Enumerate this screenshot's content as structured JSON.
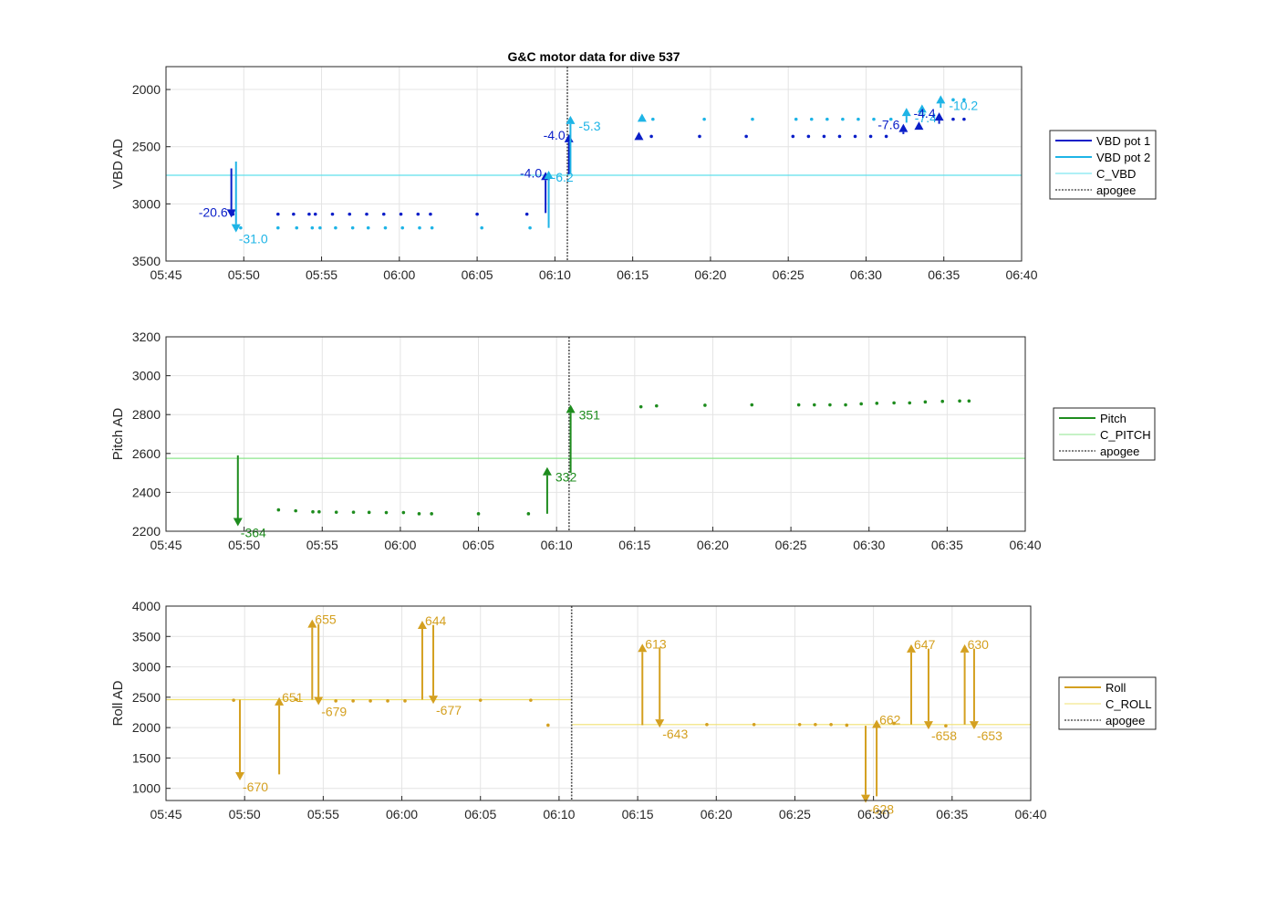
{
  "title": "G&C motor data for dive 537",
  "colors": {
    "vbd1": "#0a1ec8",
    "vbd2": "#1eb4e6",
    "c_vbd": "#5fe0ec",
    "pitch": "#1e8c1e",
    "c_pitch": "#8ce68c",
    "roll": "#d4a020",
    "c_roll": "#f0e070",
    "apogee": "#555555",
    "grid": "#e4e4e4",
    "axis": "#262626"
  },
  "chart_data": [
    {
      "type": "line",
      "id": "vbd",
      "title": "G&C motor data for dive 537",
      "ylabel": "VBD AD",
      "xlabel": "",
      "ylim": [
        1800,
        3500
      ],
      "y_reversed": true,
      "yticks": [
        2000,
        2500,
        3000,
        3500
      ],
      "xlim": [
        "05:45",
        "06:40"
      ],
      "xticks": [
        "05:45",
        "05:50",
        "05:55",
        "06:00",
        "06:05",
        "06:10",
        "06:15",
        "06:20",
        "06:25",
        "06:30",
        "06:35",
        "06:40"
      ],
      "grid": true,
      "legend_location": "right",
      "legend": [
        "VBD pot 1",
        "VBD pot 2",
        "C_VBD",
        "apogee"
      ],
      "constants": [
        {
          "name": "C_VBD",
          "value": 2750
        }
      ],
      "apogee": "06:10.8",
      "series": [
        {
          "name": "VBD pot 1",
          "color_key": "vbd1",
          "points": [
            [
              "05:49.3",
              3090
            ],
            [
              "05:52.2",
              3090
            ],
            [
              "05:53.2",
              3090
            ],
            [
              "05:54.2",
              3090
            ],
            [
              "05:54.6",
              3090
            ],
            [
              "05:55.7",
              3090
            ],
            [
              "05:56.8",
              3090
            ],
            [
              "05:57.9",
              3090
            ],
            [
              "05:59.0",
              3090
            ],
            [
              "06:00.1",
              3090
            ],
            [
              "06:01.2",
              3090
            ],
            [
              "06:02.0",
              3090
            ],
            [
              "06:05.0",
              3090
            ],
            [
              "06:08.2",
              3090
            ],
            [
              "06:16.2",
              2410
            ],
            [
              "06:19.3",
              2410
            ],
            [
              "06:22.3",
              2410
            ],
            [
              "06:25.3",
              2410
            ],
            [
              "06:26.3",
              2410
            ],
            [
              "06:27.3",
              2410
            ],
            [
              "06:28.3",
              2410
            ],
            [
              "06:29.3",
              2410
            ],
            [
              "06:30.3",
              2410
            ],
            [
              "06:31.3",
              2410
            ],
            [
              "06:35.6",
              2260
            ],
            [
              "06:36.3",
              2260
            ]
          ]
        },
        {
          "name": "VBD pot 2",
          "color_key": "vbd2",
          "points": [
            [
              "05:49.8",
              3210
            ],
            [
              "05:52.2",
              3210
            ],
            [
              "05:53.4",
              3210
            ],
            [
              "05:54.4",
              3210
            ],
            [
              "05:54.9",
              3210
            ],
            [
              "05:55.9",
              3210
            ],
            [
              "05:57.0",
              3210
            ],
            [
              "05:58.0",
              3210
            ],
            [
              "05:59.1",
              3210
            ],
            [
              "06:00.2",
              3210
            ],
            [
              "06:01.3",
              3210
            ],
            [
              "06:02.1",
              3210
            ],
            [
              "06:05.3",
              3210
            ],
            [
              "06:08.4",
              3210
            ],
            [
              "06:16.3",
              2260
            ],
            [
              "06:19.6",
              2260
            ],
            [
              "06:22.7",
              2260
            ],
            [
              "06:25.5",
              2260
            ],
            [
              "06:26.5",
              2260
            ],
            [
              "06:27.5",
              2260
            ],
            [
              "06:28.5",
              2260
            ],
            [
              "06:29.5",
              2260
            ],
            [
              "06:30.5",
              2260
            ],
            [
              "06:31.6",
              2260
            ],
            [
              "06:35.6",
              2090
            ],
            [
              "06:36.3",
              2090
            ]
          ]
        }
      ],
      "markers": [
        {
          "t": "06:15.4",
          "y": 2410,
          "color_key": "vbd1"
        },
        {
          "t": "06:15.6",
          "y": 2250,
          "color_key": "vbd2"
        },
        {
          "t": "06:33.6",
          "y": 2170,
          "color_key": "vbd2"
        },
        {
          "t": "06:33.4",
          "y": 2320,
          "color_key": "vbd1"
        }
      ],
      "arrows": [
        {
          "t": "05:49.2",
          "y0": 2690,
          "y1": 3120,
          "color_key": "vbd1",
          "label": "-20.6",
          "label_side": "left"
        },
        {
          "t": "05:49.5",
          "y0": 2630,
          "y1": 3250,
          "color_key": "vbd2",
          "label": "-31.0",
          "label_side": "right-below"
        },
        {
          "t": "06:09.4",
          "y0": 3080,
          "y1": 2720,
          "color_key": "vbd1",
          "label": "-4.0",
          "label_side": "left"
        },
        {
          "t": "06:09.6",
          "y0": 3210,
          "y1": 2710,
          "color_key": "vbd2",
          "label": "-6.2",
          "label_side": "right-below"
        },
        {
          "t": "06:10.9",
          "y0": 2740,
          "y1": 2390,
          "color_key": "vbd1",
          "label": "-4.0",
          "label_side": "left"
        },
        {
          "t": "06:11.0",
          "y0": 2740,
          "y1": 2230,
          "color_key": "vbd2",
          "label": "-5.3",
          "label_side": "right"
        },
        {
          "t": "06:32.4",
          "y0": 2390,
          "y1": 2300,
          "color_key": "vbd1",
          "label": "-7.6",
          "label_side": "left"
        },
        {
          "t": "06:32.6",
          "y0": 2290,
          "y1": 2160,
          "color_key": "vbd2",
          "label": "-7.4",
          "label_side": "right"
        },
        {
          "t": "06:34.7",
          "y0": 2300,
          "y1": 2200,
          "color_key": "vbd1",
          "label": "-4.4",
          "label_side": "left"
        },
        {
          "t": "06:34.8",
          "y0": 2160,
          "y1": 2050,
          "color_key": "vbd2",
          "label": "-10.2",
          "label_side": "right"
        }
      ]
    },
    {
      "type": "line",
      "id": "pitch",
      "ylabel": "Pitch AD",
      "xlabel": "",
      "ylim": [
        2200,
        3200
      ],
      "y_reversed": false,
      "yticks": [
        2200,
        2400,
        2600,
        2800,
        3000,
        3200
      ],
      "xlim": [
        "05:45",
        "06:40"
      ],
      "xticks": [
        "05:45",
        "05:50",
        "05:55",
        "06:00",
        "06:05",
        "06:10",
        "06:15",
        "06:20",
        "06:25",
        "06:30",
        "06:35",
        "06:40"
      ],
      "grid": true,
      "legend_location": "right",
      "legend": [
        "Pitch",
        "C_PITCH",
        "apogee"
      ],
      "constants": [
        {
          "name": "C_PITCH",
          "value": 2575
        }
      ],
      "apogee": "06:10.8",
      "series": [
        {
          "name": "Pitch",
          "color_key": "pitch",
          "points": [
            [
              "05:52.2",
              2310
            ],
            [
              "05:53.3",
              2305
            ],
            [
              "05:54.4",
              2300
            ],
            [
              "05:54.8",
              2300
            ],
            [
              "05:55.9",
              2298
            ],
            [
              "05:57.0",
              2298
            ],
            [
              "05:58.0",
              2297
            ],
            [
              "05:59.1",
              2296
            ],
            [
              "06:00.2",
              2296
            ],
            [
              "06:01.2",
              2290
            ],
            [
              "06:02.0",
              2290
            ],
            [
              "06:05.0",
              2290
            ],
            [
              "06:08.2",
              2290
            ],
            [
              "06:15.4",
              2840
            ],
            [
              "06:16.4",
              2845
            ],
            [
              "06:19.5",
              2848
            ],
            [
              "06:22.5",
              2850
            ],
            [
              "06:25.5",
              2850
            ],
            [
              "06:26.5",
              2850
            ],
            [
              "06:27.5",
              2850
            ],
            [
              "06:28.5",
              2850
            ],
            [
              "06:29.5",
              2855
            ],
            [
              "06:30.5",
              2858
            ],
            [
              "06:31.6",
              2860
            ],
            [
              "06:32.6",
              2860
            ],
            [
              "06:33.6",
              2865
            ],
            [
              "06:34.7",
              2868
            ],
            [
              "06:35.8",
              2870
            ],
            [
              "06:36.4",
              2870
            ]
          ]
        }
      ],
      "arrows": [
        {
          "t": "05:49.6",
          "y0": 2590,
          "y1": 2226,
          "color_key": "pitch",
          "label": "-364",
          "label_side": "right-below"
        },
        {
          "t": "06:09.4",
          "y0": 2290,
          "y1": 2530,
          "color_key": "pitch",
          "label": "332",
          "label_side": "right"
        },
        {
          "t": "06:10.9",
          "y0": 2500,
          "y1": 2851,
          "color_key": "pitch",
          "label": "351",
          "label_side": "right"
        }
      ]
    },
    {
      "type": "line",
      "id": "roll",
      "ylabel": "Roll AD",
      "xlabel": "",
      "ylim": [
        800,
        4000
      ],
      "y_reversed": false,
      "yticks": [
        1000,
        1500,
        2000,
        2500,
        3000,
        3500,
        4000
      ],
      "xlim": [
        "05:45",
        "06:40"
      ],
      "xticks": [
        "05:45",
        "05:50",
        "05:55",
        "06:00",
        "06:05",
        "06:10",
        "06:15",
        "06:20",
        "06:25",
        "06:30",
        "06:35",
        "06:40"
      ],
      "grid": true,
      "legend_location": "right",
      "legend": [
        "Roll",
        "C_ROLL",
        "apogee"
      ],
      "constants": [
        {
          "name": "C_ROLL",
          "value": 2460,
          "t0": "05:45",
          "t1": "06:10.8"
        },
        {
          "name": "C_ROLL",
          "value": 2050,
          "t0": "06:10.8",
          "t1": "06:40"
        }
      ],
      "apogee": "06:10.8",
      "series": [
        {
          "name": "Roll",
          "color_key": "roll",
          "points": [
            [
              "05:49.3",
              2450
            ],
            [
              "05:53.3",
              2460
            ],
            [
              "05:55.8",
              2440
            ],
            [
              "05:56.9",
              2440
            ],
            [
              "05:58.0",
              2440
            ],
            [
              "05:59.1",
              2440
            ],
            [
              "06:00.2",
              2440
            ],
            [
              "06:05.0",
              2450
            ],
            [
              "06:08.2",
              2450
            ],
            [
              "06:09.3",
              2040
            ],
            [
              "06:19.4",
              2050
            ],
            [
              "06:22.4",
              2050
            ],
            [
              "06:25.3",
              2050
            ],
            [
              "06:26.3",
              2050
            ],
            [
              "06:27.3",
              2050
            ],
            [
              "06:28.3",
              2040
            ],
            [
              "06:31.3",
              2070
            ],
            [
              "06:34.6",
              2030
            ]
          ]
        }
      ],
      "arrows": [
        {
          "t": "05:49.7",
          "y0": 2460,
          "y1": 1130,
          "color_key": "roll",
          "label": "-670",
          "label_side": "right-below"
        },
        {
          "t": "05:52.2",
          "y0": 1230,
          "y1": 2500,
          "color_key": "roll",
          "label": "651",
          "label_side": "right-top"
        },
        {
          "t": "05:54.3",
          "y0": 2460,
          "y1": 3780,
          "color_key": "roll",
          "label": "655",
          "label_side": "right-top"
        },
        {
          "t": "05:54.7",
          "y0": 3700,
          "y1": 2370,
          "color_key": "roll",
          "label": "-679",
          "label_side": "right-below"
        },
        {
          "t": "06:01.3",
          "y0": 2460,
          "y1": 3760,
          "color_key": "roll",
          "label": "644",
          "label_side": "right-top"
        },
        {
          "t": "06:02.0",
          "y0": 3690,
          "y1": 2390,
          "color_key": "roll",
          "label": "-677",
          "label_side": "right-below"
        },
        {
          "t": "06:15.3",
          "y0": 2040,
          "y1": 3380,
          "color_key": "roll",
          "label": "613",
          "label_side": "right-top"
        },
        {
          "t": "06:16.4",
          "y0": 3320,
          "y1": 2000,
          "color_key": "roll",
          "label": "-643",
          "label_side": "right-below"
        },
        {
          "t": "06:29.5",
          "y0": 2030,
          "y1": 760,
          "color_key": "roll",
          "label": "-628",
          "label_side": "right-below"
        },
        {
          "t": "06:30.2",
          "y0": 870,
          "y1": 2130,
          "color_key": "roll",
          "label": "662",
          "label_side": "right-top"
        },
        {
          "t": "06:32.4",
          "y0": 2050,
          "y1": 3370,
          "color_key": "roll",
          "label": "647",
          "label_side": "right-top"
        },
        {
          "t": "06:33.5",
          "y0": 3300,
          "y1": 1970,
          "color_key": "roll",
          "label": "-658",
          "label_side": "right-below"
        },
        {
          "t": "06:35.8",
          "y0": 2050,
          "y1": 3370,
          "color_key": "roll",
          "label": "630",
          "label_side": "right-top"
        },
        {
          "t": "06:36.4",
          "y0": 3300,
          "y1": 1970,
          "color_key": "roll",
          "label": "-653",
          "label_side": "right-below"
        }
      ]
    }
  ]
}
